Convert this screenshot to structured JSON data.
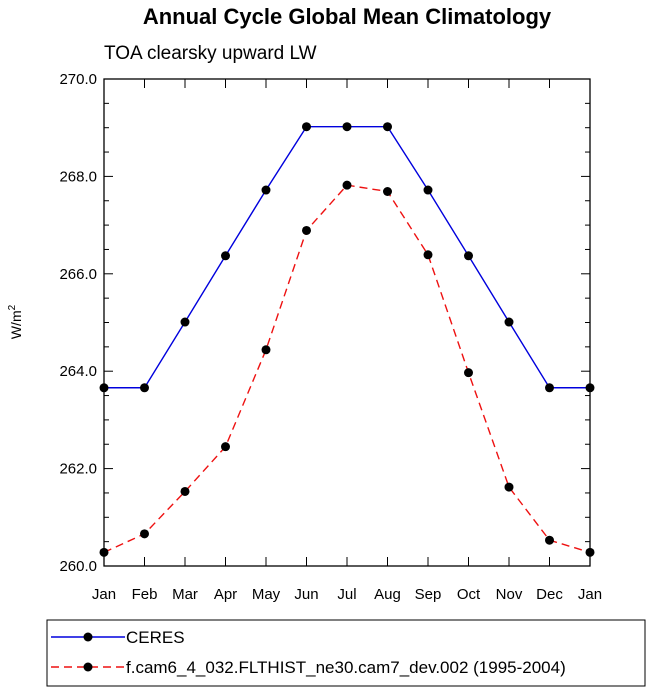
{
  "chart_data": {
    "type": "line",
    "title": "Annual Cycle Global Mean Climatology",
    "subtitle": "TOA clearsky upward LW",
    "xlabel": "",
    "ylabel": "W/m",
    "ylabel_superscript": "2",
    "categories": [
      "Jan",
      "Feb",
      "Mar",
      "Apr",
      "May",
      "Jun",
      "Jul",
      "Aug",
      "Sep",
      "Oct",
      "Nov",
      "Dec",
      "Jan"
    ],
    "ylim": [
      260.0,
      270.0
    ],
    "yticks": [
      "260.0",
      "262.0",
      "264.0",
      "266.0",
      "268.0",
      "270.0"
    ],
    "grid": false,
    "legend_position": "bottom",
    "series": [
      {
        "name": "CERES",
        "color": "#0000dd",
        "dash": "solid",
        "values": [
          263.66,
          263.66,
          265.01,
          266.37,
          267.72,
          269.02,
          269.02,
          269.02,
          267.72,
          266.37,
          265.01,
          263.66,
          263.66
        ]
      },
      {
        "name": "f.cam6_4_032.FLTHIST_ne30.cam7_dev.002 (1995-2004)",
        "color": "#ee1111",
        "dash": "dashed",
        "values": [
          260.28,
          260.66,
          261.53,
          262.45,
          264.44,
          266.89,
          267.82,
          267.69,
          266.39,
          263.97,
          261.62,
          260.53,
          260.28
        ]
      }
    ]
  }
}
